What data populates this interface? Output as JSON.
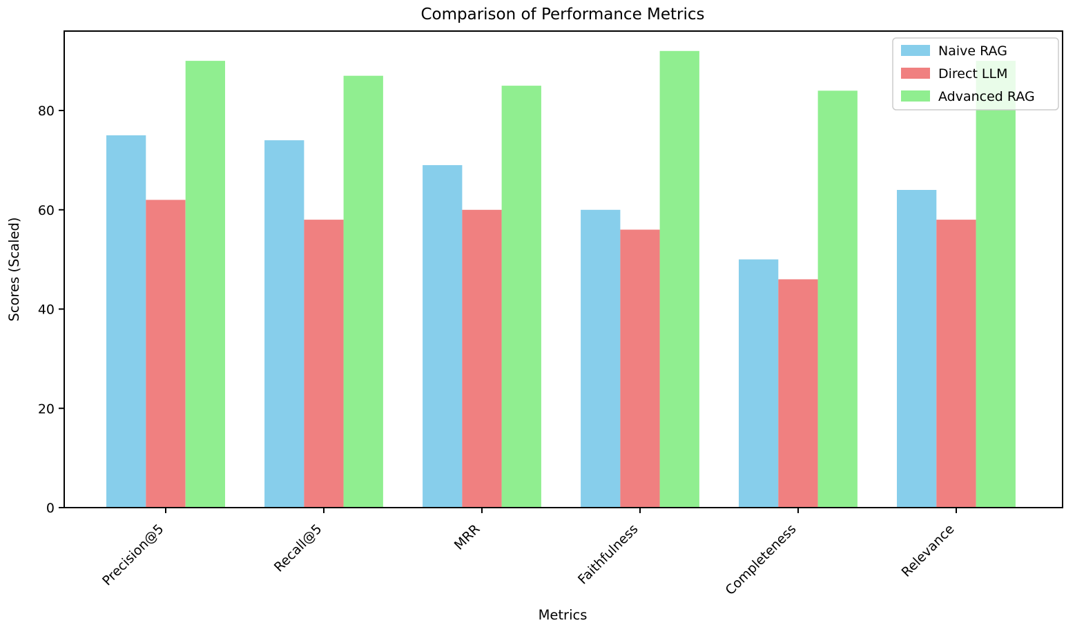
{
  "figure": {
    "background": "#ffffff",
    "spine_color": "#000000",
    "text_color": "#000000"
  },
  "chart_data": {
    "type": "bar",
    "title": "Comparison of Performance Metrics",
    "xlabel": "Metrics",
    "ylabel": "Scores (Scaled)",
    "categories": [
      "Precision@5",
      "Recall@5",
      "MRR",
      "Faithfulness",
      "Completeness",
      "Relevance"
    ],
    "series": [
      {
        "name": "Naive RAG",
        "color": "#87ceeb",
        "values": [
          75,
          74,
          69,
          60,
          50,
          64
        ]
      },
      {
        "name": "Direct LLM",
        "color": "#f08080",
        "values": [
          62,
          58,
          60,
          56,
          46,
          58
        ]
      },
      {
        "name": "Advanced RAG",
        "color": "#90ee90",
        "values": [
          90,
          87,
          85,
          92,
          84,
          90
        ]
      }
    ],
    "yticks": [
      0,
      20,
      40,
      60,
      80
    ],
    "ylim": [
      0,
      96
    ],
    "xtick_rotation": 45,
    "grid": false,
    "legend_position": "upper right",
    "legend_border_color": "#cccccc",
    "legend_background": "rgba(255,255,255,0.8)"
  }
}
